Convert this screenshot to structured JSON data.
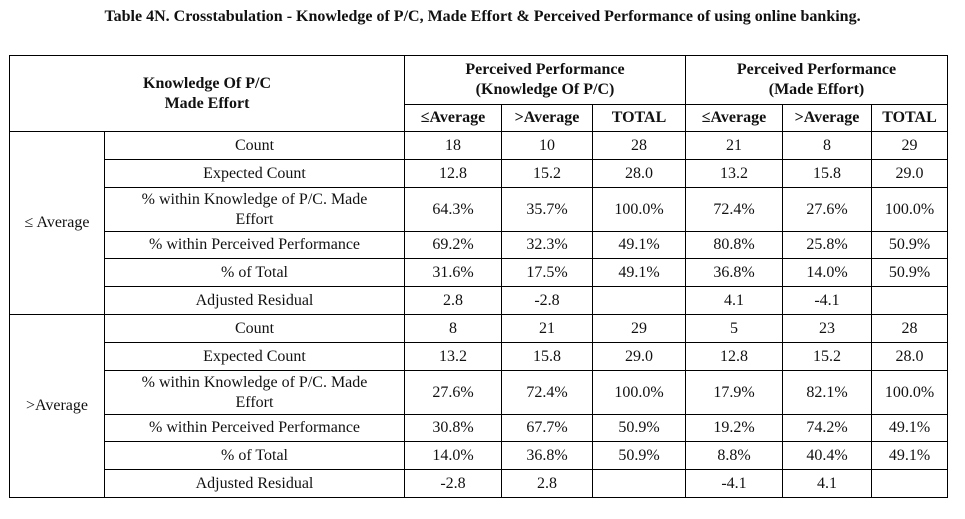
{
  "caption": "Table 4N. Crosstabulation - Knowledge of P/C, Made Effort & Perceived Performance of using online banking.",
  "header": {
    "corner": [
      "Knowledge Of P/C",
      "Made Effort"
    ],
    "group1": [
      "Perceived Performance",
      "(Knowledge Of P/C)"
    ],
    "group2": [
      "Perceived Performance",
      "(Made Effort)"
    ],
    "cols": [
      "≤Average",
      ">Average",
      "TOTAL",
      "≤Average",
      ">Average",
      "TOTAL"
    ]
  },
  "groups": [
    {
      "label": "≤ Average",
      "rows": [
        {
          "desc": [
            "Count"
          ],
          "values": [
            "18",
            "10",
            "28",
            "21",
            "8",
            "29"
          ]
        },
        {
          "desc": [
            "Expected Count"
          ],
          "values": [
            "12.8",
            "15.2",
            "28.0",
            "13.2",
            "15.8",
            "29.0"
          ]
        },
        {
          "desc": [
            "% within Knowledge of P/C. Made",
            "Effort"
          ],
          "values": [
            "64.3%",
            "35.7%",
            "100.0%",
            "72.4%",
            "27.6%",
            "100.0%"
          ]
        },
        {
          "desc": [
            "% within Perceived Performance"
          ],
          "values": [
            "69.2%",
            "32.3%",
            "49.1%",
            "80.8%",
            "25.8%",
            "50.9%"
          ]
        },
        {
          "desc": [
            "% of Total"
          ],
          "values": [
            "31.6%",
            "17.5%",
            "49.1%",
            "36.8%",
            "14.0%",
            "50.9%"
          ]
        },
        {
          "desc": [
            "Adjusted Residual"
          ],
          "values": [
            "2.8",
            "-2.8",
            "",
            "4.1",
            "-4.1",
            ""
          ]
        }
      ]
    },
    {
      "label": ">Average",
      "rows": [
        {
          "desc": [
            "Count"
          ],
          "values": [
            "8",
            "21",
            "29",
            "5",
            "23",
            "28"
          ]
        },
        {
          "desc": [
            "Expected Count"
          ],
          "values": [
            "13.2",
            "15.8",
            "29.0",
            "12.8",
            "15.2",
            "28.0"
          ]
        },
        {
          "desc": [
            "% within Knowledge of P/C. Made",
            "Effort"
          ],
          "values": [
            "27.6%",
            "72.4%",
            "100.0%",
            "17.9%",
            "82.1%",
            "100.0%"
          ]
        },
        {
          "desc": [
            "% within Perceived Performance"
          ],
          "values": [
            "30.8%",
            "67.7%",
            "50.9%",
            "19.2%",
            "74.2%",
            "49.1%"
          ]
        },
        {
          "desc": [
            "% of Total"
          ],
          "values": [
            "14.0%",
            "36.8%",
            "50.9%",
            "8.8%",
            "40.4%",
            "49.1%"
          ]
        },
        {
          "desc": [
            "Adjusted Residual"
          ],
          "values": [
            "-2.8",
            "2.8",
            "",
            "-4.1",
            "4.1",
            ""
          ]
        }
      ]
    }
  ]
}
